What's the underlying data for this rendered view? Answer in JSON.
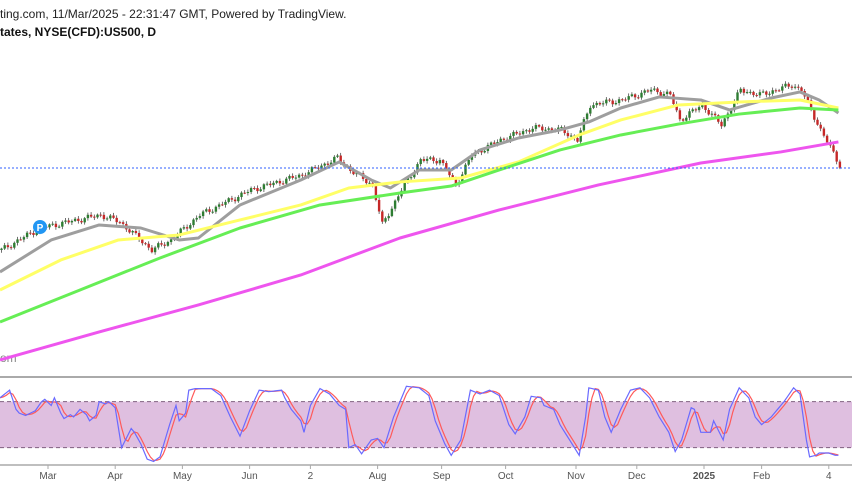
{
  "header": {
    "line1": "ting.com, 11/Mar/2025 - 22:31:47 GMT, Powered by TradingView.",
    "line2": "tates, NYSE(CFD):US500, D"
  },
  "watermark": "om",
  "badge": {
    "label": "P",
    "color": "#2196f3"
  },
  "colors": {
    "up": "#2e7d32",
    "down": "#c62828",
    "ma20": "#9e9e9e",
    "ma50": "#ffff66",
    "ma100": "#66ee55",
    "ma200": "#ee55ee",
    "stochK": "#6a6aff",
    "stochD": "#ff5a5a",
    "band": "#dfbfe0",
    "last": "#2f5fff"
  },
  "chart_data": {
    "type": "line",
    "title": "US500 Daily (NYSE CFD)",
    "x_unit": "trading day index",
    "last_price": 5572,
    "close": [
      [
        0,
        5031
      ],
      [
        12,
        5176
      ],
      [
        31,
        5262
      ],
      [
        37,
        5216
      ],
      [
        47,
        5031
      ],
      [
        53,
        5097
      ],
      [
        62,
        5262
      ],
      [
        78,
        5427
      ],
      [
        94,
        5526
      ],
      [
        105,
        5638
      ],
      [
        109,
        5559
      ],
      [
        116,
        5460
      ],
      [
        119,
        5196
      ],
      [
        125,
        5427
      ],
      [
        131,
        5625
      ],
      [
        137,
        5625
      ],
      [
        142,
        5460
      ],
      [
        147,
        5658
      ],
      [
        156,
        5757
      ],
      [
        166,
        5836
      ],
      [
        175,
        5823
      ],
      [
        180,
        5757
      ],
      [
        184,
        5988
      ],
      [
        194,
        6021
      ],
      [
        203,
        6087
      ],
      [
        209,
        6054
      ],
      [
        212,
        5889
      ],
      [
        219,
        5988
      ],
      [
        225,
        5856
      ],
      [
        231,
        6087
      ],
      [
        237,
        6054
      ],
      [
        247,
        6120
      ],
      [
        250,
        6087
      ],
      [
        256,
        5823
      ],
      [
        262,
        5592
      ]
    ],
    "series": [
      {
        "name": "MA20",
        "values": [
          [
            0,
            4886
          ],
          [
            16,
            5097
          ],
          [
            31,
            5196
          ],
          [
            44,
            5176
          ],
          [
            56,
            5097
          ],
          [
            62,
            5110
          ],
          [
            75,
            5328
          ],
          [
            94,
            5493
          ],
          [
            106,
            5612
          ],
          [
            116,
            5493
          ],
          [
            122,
            5440
          ],
          [
            131,
            5559
          ],
          [
            141,
            5559
          ],
          [
            150,
            5691
          ],
          [
            162,
            5770
          ],
          [
            175,
            5823
          ],
          [
            184,
            5876
          ],
          [
            194,
            5968
          ],
          [
            206,
            6041
          ],
          [
            219,
            6021
          ],
          [
            228,
            5955
          ],
          [
            241,
            6034
          ],
          [
            250,
            6074
          ],
          [
            256,
            6021
          ],
          [
            262,
            5935
          ]
        ]
      },
      {
        "name": "MA50",
        "values": [
          [
            0,
            4767
          ],
          [
            19,
            4965
          ],
          [
            37,
            5097
          ],
          [
            56,
            5130
          ],
          [
            75,
            5229
          ],
          [
            94,
            5328
          ],
          [
            109,
            5440
          ],
          [
            125,
            5480
          ],
          [
            144,
            5506
          ],
          [
            162,
            5612
          ],
          [
            181,
            5790
          ],
          [
            194,
            5889
          ],
          [
            212,
            5988
          ],
          [
            231,
            6008
          ],
          [
            250,
            6021
          ],
          [
            262,
            5968
          ]
        ]
      },
      {
        "name": "MA100",
        "values": [
          [
            0,
            4556
          ],
          [
            25,
            4767
          ],
          [
            50,
            4978
          ],
          [
            75,
            5176
          ],
          [
            100,
            5328
          ],
          [
            125,
            5407
          ],
          [
            141,
            5453
          ],
          [
            156,
            5559
          ],
          [
            175,
            5691
          ],
          [
            194,
            5790
          ],
          [
            212,
            5862
          ],
          [
            231,
            5928
          ],
          [
            250,
            5968
          ],
          [
            262,
            5955
          ]
        ]
      },
      {
        "name": "MA200",
        "values": [
          [
            0,
            4305
          ],
          [
            31,
            4490
          ],
          [
            62,
            4668
          ],
          [
            94,
            4866
          ],
          [
            125,
            5110
          ],
          [
            156,
            5295
          ],
          [
            187,
            5460
          ],
          [
            219,
            5605
          ],
          [
            244,
            5678
          ],
          [
            262,
            5744
          ]
        ]
      }
    ],
    "stochastic": {
      "upper": 80,
      "lower": 20,
      "ylim": [
        0,
        100
      ],
      "k": [
        [
          0,
          85
        ],
        [
          3,
          95
        ],
        [
          5,
          70
        ],
        [
          6,
          65
        ],
        [
          8,
          62
        ],
        [
          11,
          68
        ],
        [
          13,
          80
        ],
        [
          14,
          83
        ],
        [
          16,
          75
        ],
        [
          17,
          85
        ],
        [
          19,
          65
        ],
        [
          20,
          58
        ],
        [
          22,
          63
        ],
        [
          23,
          60
        ],
        [
          25,
          70
        ],
        [
          27,
          63
        ],
        [
          28,
          55
        ],
        [
          30,
          62
        ],
        [
          31,
          80
        ],
        [
          33,
          77
        ],
        [
          34,
          80
        ],
        [
          36,
          72
        ],
        [
          38,
          20
        ],
        [
          41,
          45
        ],
        [
          42,
          40
        ],
        [
          44,
          25
        ],
        [
          46,
          5
        ],
        [
          48,
          2
        ],
        [
          50,
          8
        ],
        [
          53,
          50
        ],
        [
          55,
          75
        ],
        [
          56,
          55
        ],
        [
          58,
          65
        ],
        [
          59,
          95
        ],
        [
          61,
          97
        ],
        [
          66,
          97
        ],
        [
          69,
          88
        ],
        [
          72,
          60
        ],
        [
          75,
          35
        ],
        [
          78,
          68
        ],
        [
          81,
          95
        ],
        [
          84,
          93
        ],
        [
          88,
          95
        ],
        [
          89,
          85
        ],
        [
          91,
          70
        ],
        [
          94,
          55
        ],
        [
          95,
          40
        ],
        [
          97,
          75
        ],
        [
          100,
          97
        ],
        [
          103,
          90
        ],
        [
          106,
          75
        ],
        [
          108,
          70
        ],
        [
          109,
          20
        ],
        [
          111,
          24
        ],
        [
          113,
          12
        ],
        [
          116,
          30
        ],
        [
          118,
          32
        ],
        [
          120,
          20
        ],
        [
          123,
          60
        ],
        [
          127,
          100
        ],
        [
          131,
          98
        ],
        [
          134,
          88
        ],
        [
          136,
          55
        ],
        [
          139,
          25
        ],
        [
          141,
          10
        ],
        [
          144,
          30
        ],
        [
          147,
          95
        ],
        [
          150,
          90
        ],
        [
          153,
          95
        ],
        [
          156,
          88
        ],
        [
          159,
          50
        ],
        [
          161,
          38
        ],
        [
          164,
          60
        ],
        [
          166,
          87
        ],
        [
          169,
          85
        ],
        [
          170,
          75
        ],
        [
          173,
          70
        ],
        [
          175,
          50
        ],
        [
          178,
          30
        ],
        [
          181,
          10
        ],
        [
          183,
          60
        ],
        [
          184,
          98
        ],
        [
          187,
          95
        ],
        [
          189,
          60
        ],
        [
          191,
          40
        ],
        [
          194,
          70
        ],
        [
          197,
          95
        ],
        [
          200,
          98
        ],
        [
          203,
          85
        ],
        [
          206,
          60
        ],
        [
          209,
          40
        ],
        [
          211,
          15
        ],
        [
          213,
          30
        ],
        [
          216,
          72
        ],
        [
          217,
          70
        ],
        [
          219,
          40
        ],
        [
          222,
          40
        ],
        [
          223,
          55
        ],
        [
          226,
          30
        ],
        [
          228,
          70
        ],
        [
          231,
          98
        ],
        [
          234,
          85
        ],
        [
          236,
          60
        ],
        [
          238,
          50
        ],
        [
          241,
          60
        ],
        [
          242,
          65
        ],
        [
          245,
          80
        ],
        [
          248,
          98
        ],
        [
          250,
          90
        ],
        [
          252,
          30
        ],
        [
          253,
          8
        ],
        [
          255,
          10
        ],
        [
          256,
          13
        ],
        [
          259,
          13
        ],
        [
          261,
          10
        ]
      ]
    },
    "x_tick_labels": [
      "Mar",
      "Apr",
      "May",
      "Jun",
      "2",
      "Aug",
      "Sep",
      "Oct",
      "Nov",
      "Dec",
      "2025",
      "Feb",
      "4"
    ],
    "x_tick_days": [
      15,
      36,
      57,
      78,
      97,
      118,
      138,
      158,
      180,
      199,
      220,
      238,
      259
    ],
    "grid": false
  }
}
